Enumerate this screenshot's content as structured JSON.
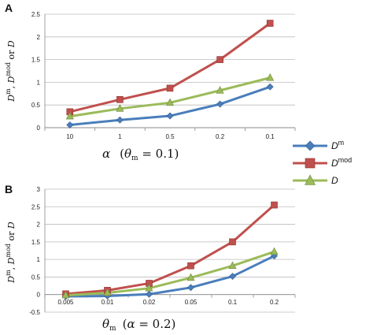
{
  "chart_data": [
    {
      "panel": "A",
      "type": "line",
      "categories": [
        "10",
        "1",
        "0.5",
        "0.2",
        "0.1"
      ],
      "ylabel": "Dm, Dmod or D",
      "xlabel": "α (θm = 0.1)",
      "ylim": [
        0,
        2.5
      ],
      "yticks": [
        "0",
        "0.5",
        "1",
        "1.5",
        "2",
        "2.5"
      ],
      "grid": true,
      "series": [
        {
          "name": "Dm",
          "color": "#4a7ebb",
          "marker": "diamond",
          "values": [
            0.06,
            0.17,
            0.26,
            0.52,
            0.9
          ]
        },
        {
          "name": "Dmod",
          "color": "#c0504d",
          "marker": "square",
          "values": [
            0.35,
            0.62,
            0.87,
            1.5,
            2.3
          ]
        },
        {
          "name": "D",
          "color": "#9bbb59",
          "marker": "triangle",
          "values": [
            0.25,
            0.42,
            0.55,
            0.82,
            1.1
          ]
        }
      ]
    },
    {
      "panel": "B",
      "type": "line",
      "categories": [
        "0.005",
        "0.01",
        "0.02",
        "0.05",
        "0.1",
        "0.2"
      ],
      "ylabel": "Dm, Dmod or D",
      "xlabel": "θm (α = 0.2)",
      "ylim": [
        -0.5,
        3
      ],
      "yticks": [
        "-0.5",
        "0",
        "0.5",
        "1",
        "1.5",
        "2",
        "2.5",
        "3"
      ],
      "grid": true,
      "series": [
        {
          "name": "Dm",
          "color": "#4a7ebb",
          "marker": "diamond",
          "values": [
            -0.05,
            -0.04,
            0.01,
            0.2,
            0.52,
            1.1
          ]
        },
        {
          "name": "Dmod",
          "color": "#c0504d",
          "marker": "square",
          "values": [
            0.02,
            0.12,
            0.32,
            0.82,
            1.5,
            2.55
          ]
        },
        {
          "name": "D",
          "color": "#9bbb59",
          "marker": "triangle",
          "values": [
            -0.02,
            0.05,
            0.18,
            0.48,
            0.82,
            1.22
          ]
        }
      ]
    }
  ],
  "legend": {
    "placement": "right",
    "entries": [
      {
        "label_main": "D",
        "label_sup": "m",
        "color": "#4a7ebb",
        "marker": "diamond"
      },
      {
        "label_main": "D",
        "label_sup": "mod",
        "color": "#c0504d",
        "marker": "square"
      },
      {
        "label_main": "D",
        "label_sup": "",
        "color": "#9bbb59",
        "marker": "triangle"
      }
    ]
  }
}
